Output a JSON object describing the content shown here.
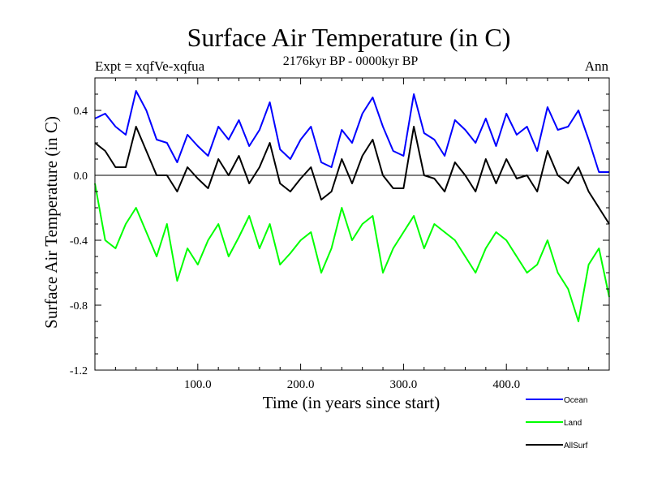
{
  "chart_data": {
    "type": "line",
    "title": "Surface Air Temperature (in C)",
    "subtitle_left": "Expt = xqfVe-xqfua",
    "subtitle_center": "2176kyr BP - 0000kyr BP",
    "subtitle_right": "Ann",
    "xlabel": "Time (in years since start)",
    "ylabel": "Surface Air Temperature (in C)",
    "xlim": [
      0,
      500
    ],
    "ylim": [
      -1.2,
      0.6
    ],
    "xticks": [
      100,
      200,
      300,
      400
    ],
    "xtick_labels": [
      "100.0",
      "200.0",
      "300.0",
      "400.0"
    ],
    "yticks": [
      -1.2,
      -0.8,
      -0.4,
      0.0,
      0.4
    ],
    "ytick_labels": [
      "-1.2",
      "-0.8",
      "-0.4",
      "0.0",
      "0.4"
    ],
    "zero_line": 0.0,
    "legend_position": "bottom-right",
    "series": [
      {
        "name": "Ocean",
        "color": "#0000ff",
        "x": [
          0,
          10,
          20,
          30,
          40,
          50,
          60,
          70,
          80,
          90,
          100,
          110,
          120,
          130,
          140,
          150,
          160,
          170,
          180,
          190,
          200,
          210,
          220,
          230,
          240,
          250,
          260,
          270,
          280,
          290,
          300,
          310,
          320,
          330,
          340,
          350,
          360,
          370,
          380,
          390,
          400,
          410,
          420,
          430,
          440,
          450,
          460,
          470,
          480,
          490,
          500
        ],
        "values": [
          0.35,
          0.38,
          0.3,
          0.25,
          0.52,
          0.4,
          0.22,
          0.2,
          0.08,
          0.25,
          0.18,
          0.12,
          0.3,
          0.22,
          0.34,
          0.18,
          0.28,
          0.45,
          0.16,
          0.1,
          0.22,
          0.3,
          0.08,
          0.05,
          0.28,
          0.2,
          0.38,
          0.48,
          0.3,
          0.15,
          0.12,
          0.5,
          0.26,
          0.22,
          0.12,
          0.34,
          0.28,
          0.2,
          0.35,
          0.18,
          0.38,
          0.25,
          0.3,
          0.15,
          0.42,
          0.28,
          0.3,
          0.4,
          0.22,
          0.02,
          0.02
        ]
      },
      {
        "name": "Land",
        "color": "#00ff00",
        "x": [
          0,
          10,
          20,
          30,
          40,
          50,
          60,
          70,
          80,
          90,
          100,
          110,
          120,
          130,
          140,
          150,
          160,
          170,
          180,
          190,
          200,
          210,
          220,
          230,
          240,
          250,
          260,
          270,
          280,
          290,
          300,
          310,
          320,
          330,
          340,
          350,
          360,
          370,
          380,
          390,
          400,
          410,
          420,
          430,
          440,
          450,
          460,
          470,
          480,
          490,
          500
        ],
        "values": [
          -0.05,
          -0.4,
          -0.45,
          -0.3,
          -0.2,
          -0.35,
          -0.5,
          -0.3,
          -0.65,
          -0.45,
          -0.55,
          -0.4,
          -0.3,
          -0.5,
          -0.38,
          -0.25,
          -0.45,
          -0.3,
          -0.55,
          -0.48,
          -0.4,
          -0.35,
          -0.6,
          -0.45,
          -0.2,
          -0.4,
          -0.3,
          -0.25,
          -0.6,
          -0.45,
          -0.35,
          -0.25,
          -0.45,
          -0.3,
          -0.35,
          -0.4,
          -0.5,
          -0.6,
          -0.45,
          -0.35,
          -0.4,
          -0.5,
          -0.6,
          -0.55,
          -0.4,
          -0.6,
          -0.7,
          -0.9,
          -0.55,
          -0.45,
          -0.75
        ]
      },
      {
        "name": "AllSurf",
        "color": "#000000",
        "x": [
          0,
          10,
          20,
          30,
          40,
          50,
          60,
          70,
          80,
          90,
          100,
          110,
          120,
          130,
          140,
          150,
          160,
          170,
          180,
          190,
          200,
          210,
          220,
          230,
          240,
          250,
          260,
          270,
          280,
          290,
          300,
          310,
          320,
          330,
          340,
          350,
          360,
          370,
          380,
          390,
          400,
          410,
          420,
          430,
          440,
          450,
          460,
          470,
          480,
          490,
          500
        ],
        "values": [
          0.2,
          0.15,
          0.05,
          0.05,
          0.3,
          0.15,
          0.0,
          0.0,
          -0.1,
          0.05,
          -0.02,
          -0.08,
          0.1,
          0.0,
          0.12,
          -0.05,
          0.05,
          0.2,
          -0.05,
          -0.1,
          -0.02,
          0.05,
          -0.15,
          -0.1,
          0.1,
          -0.05,
          0.12,
          0.22,
          0.0,
          -0.08,
          -0.08,
          0.3,
          0.0,
          -0.02,
          -0.1,
          0.08,
          0.0,
          -0.1,
          0.1,
          -0.05,
          0.1,
          -0.02,
          0.0,
          -0.1,
          0.15,
          0.0,
          -0.05,
          0.05,
          -0.1,
          -0.2,
          -0.3
        ]
      }
    ]
  }
}
